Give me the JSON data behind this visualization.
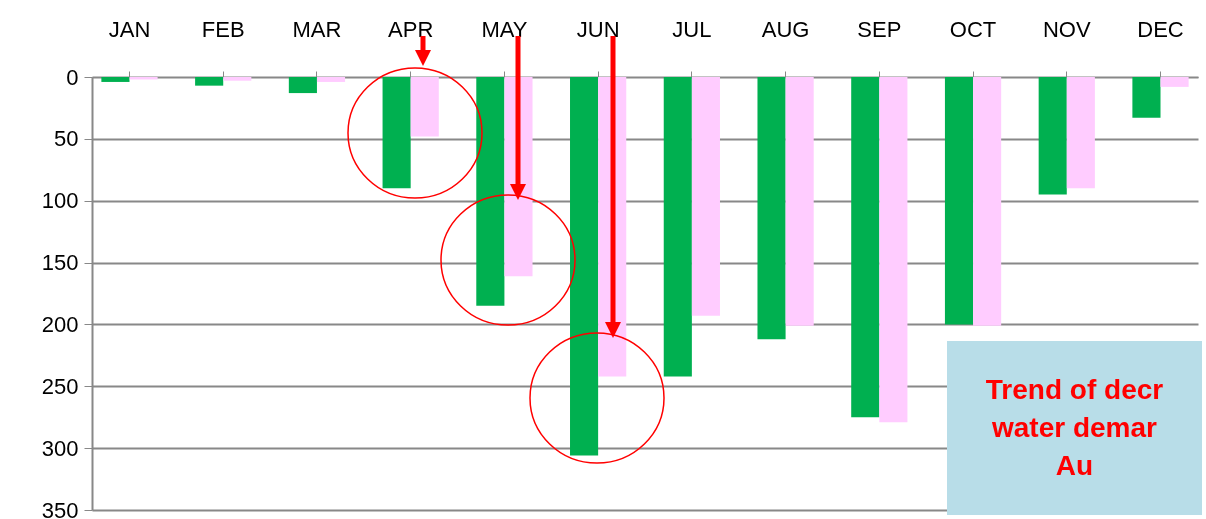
{
  "chart_data": {
    "type": "bar",
    "categories": [
      "JAN",
      "FEB",
      "MAR",
      "APR",
      "MAY",
      "JUN",
      "JUL",
      "AUG",
      "SEP",
      "OCT",
      "NOV",
      "DEC"
    ],
    "series": [
      {
        "color": "#00b050",
        "values": [
          4,
          7,
          13,
          90,
          185,
          306,
          242,
          212,
          275,
          200,
          95,
          33
        ]
      },
      {
        "color": "#ffccff",
        "values": [
          2,
          3,
          4,
          48,
          161,
          242,
          193,
          201,
          279,
          201,
          90,
          8
        ]
      }
    ],
    "ylim": [
      350,
      0
    ],
    "yticks": [
      0,
      50,
      100,
      150,
      200,
      250,
      300,
      350
    ],
    "grid": "y",
    "annotations": [
      "Trend of decr",
      "water demar",
      "Au"
    ]
  }
}
